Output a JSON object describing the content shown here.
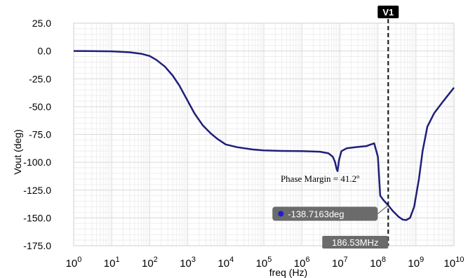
{
  "chart_data": {
    "type": "line",
    "title": "",
    "xlabel": "freq (Hz)",
    "ylabel": "Vout (deg)",
    "xscale": "log",
    "xlim": [
      1,
      10000000000
    ],
    "ylim": [
      -175,
      25
    ],
    "grid": true,
    "y_ticks": [
      {
        "value": 25,
        "label": "25.0"
      },
      {
        "value": 0,
        "label": "0.0"
      },
      {
        "value": -25,
        "label": "-25.0"
      },
      {
        "value": -50,
        "label": "-50.0"
      },
      {
        "value": -75,
        "label": "-75.0"
      },
      {
        "value": -100,
        "label": "-100.0"
      },
      {
        "value": -125,
        "label": "-125.0"
      },
      {
        "value": -150,
        "label": "-150.0"
      },
      {
        "value": -175,
        "label": "-175.0"
      }
    ],
    "x_ticks": [
      {
        "value": 1,
        "base": "10",
        "exp": "0"
      },
      {
        "value": 10,
        "base": "10",
        "exp": "1"
      },
      {
        "value": 100,
        "base": "10",
        "exp": "2"
      },
      {
        "value": 1000,
        "base": "10",
        "exp": "3"
      },
      {
        "value": 10000,
        "base": "10",
        "exp": "4"
      },
      {
        "value": 100000,
        "base": "10",
        "exp": "5"
      },
      {
        "value": 1000000,
        "base": "10",
        "exp": "6"
      },
      {
        "value": 10000000,
        "base": "10",
        "exp": "7"
      },
      {
        "value": 100000000,
        "base": "10",
        "exp": "8"
      },
      {
        "value": 1000000000,
        "base": "10",
        "exp": "9"
      },
      {
        "value": 10000000000,
        "base": "10",
        "exp": "10"
      }
    ],
    "series": [
      {
        "color": "#1f1f7a",
        "x": [
          1,
          10,
          30,
          60,
          100,
          150,
          250,
          400,
          600,
          1000,
          1500,
          2500,
          4000,
          6000,
          10000,
          20000,
          50000,
          100000,
          300000,
          1000000,
          3000000,
          5000000,
          6500000,
          7500000,
          8200000,
          8700000,
          9500000,
          11000000,
          15000000,
          25000000,
          50000000,
          65000000,
          80000000,
          100000000,
          115000000,
          140000000,
          186530000,
          250000000,
          350000000,
          450000000,
          550000000,
          700000000,
          900000000,
          1200000000,
          1500000000,
          2000000000,
          3000000000,
          5000000000,
          10000000000
        ],
        "y": [
          0,
          -0.3,
          -1.2,
          -2.5,
          -4.5,
          -8,
          -14,
          -22,
          -31,
          -45,
          -56,
          -67,
          -74,
          -79,
          -84,
          -86.5,
          -88.5,
          -89.3,
          -89.8,
          -90,
          -90.5,
          -92,
          -95,
          -100,
          -106,
          -108,
          -98,
          -90,
          -87.5,
          -86.5,
          -85.5,
          -84,
          -83,
          -95,
          -130,
          -134,
          -138.7,
          -144,
          -149,
          -151.5,
          -152,
          -150,
          -140,
          -115,
          -90,
          -68,
          -56,
          -46,
          -33
        ]
      }
    ],
    "cursor": {
      "name": "V1",
      "x": 186530000,
      "label": "186.53MHz"
    },
    "marker": {
      "x": 186530000,
      "y": -138.7163,
      "label": "-138.7163deg"
    },
    "annotation": {
      "text": "Phase Margin = 41.2º",
      "x": 3000000,
      "y": -115
    }
  }
}
